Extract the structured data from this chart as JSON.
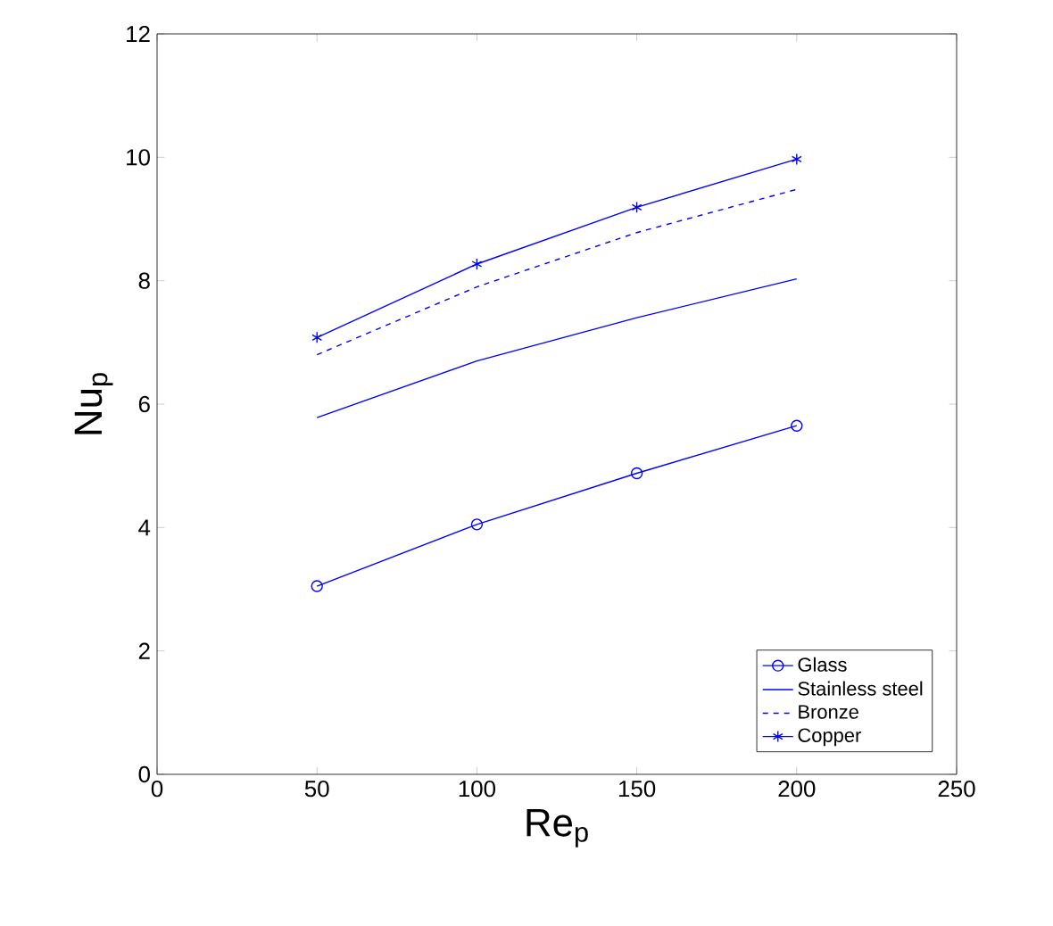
{
  "chart_data": {
    "type": "line",
    "xlabel": "Re$_{p}$",
    "ylabel": "Nu$_{p}$",
    "x": [
      50,
      100,
      150,
      200
    ],
    "series": [
      {
        "name": "Glass",
        "color": "#0000ff",
        "marker": "circle",
        "line_style": "solid",
        "values": [
          3.05,
          4.05,
          4.88,
          5.65
        ]
      },
      {
        "name": "Stainless steel",
        "color": "#0000ff",
        "marker": "none",
        "line_style": "solid",
        "values": [
          5.78,
          6.7,
          7.4,
          8.03
        ]
      },
      {
        "name": "Bronze",
        "color": "#0000ff",
        "marker": "none",
        "line_style": "dashed",
        "values": [
          6.8,
          7.9,
          8.78,
          9.48
        ]
      },
      {
        "name": "Copper",
        "color": "#0000ff",
        "marker": "cross",
        "line_style": "solid",
        "values": [
          7.08,
          8.27,
          9.19,
          9.97
        ]
      }
    ],
    "xlim": [
      0,
      250
    ],
    "xticks": [
      0,
      50,
      100,
      150,
      200,
      250
    ],
    "ylim": [
      0,
      12
    ],
    "yticks": [
      0,
      2,
      4,
      6,
      8,
      10,
      12
    ],
    "grid": false,
    "legend": "bottom right"
  }
}
